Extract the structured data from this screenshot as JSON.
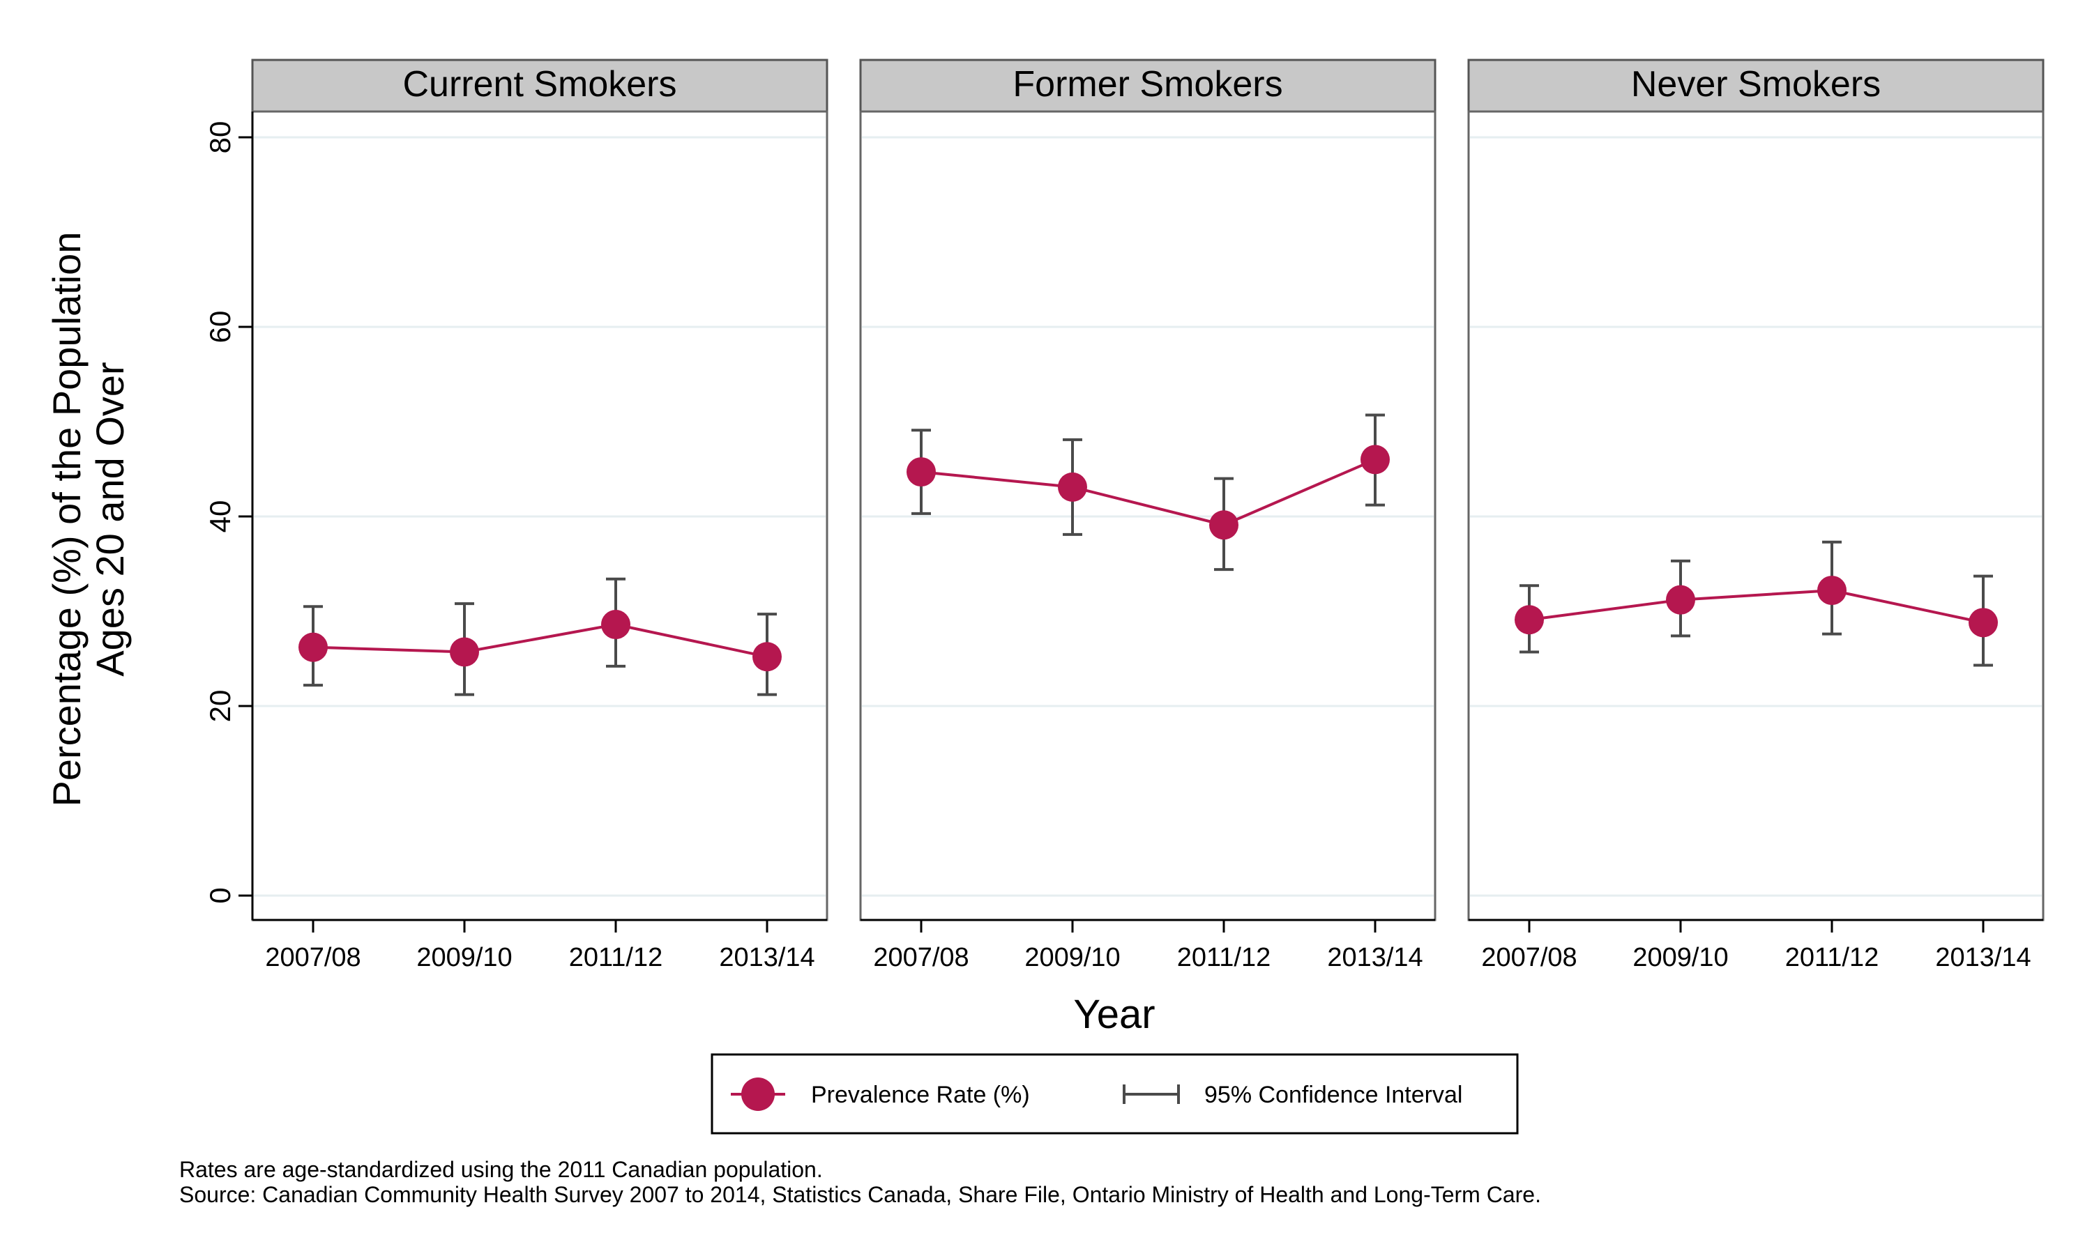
{
  "chart_data": {
    "type": "line",
    "ylabel_line1": "Percentage (%) of the Population",
    "ylabel_line2": "Ages 20 and Over",
    "xlabel": "Year",
    "ylim": [
      0,
      80
    ],
    "yticks": [
      0,
      20,
      40,
      60,
      80
    ],
    "grid": true,
    "categories": [
      "2007/08",
      "2009/10",
      "2011/12",
      "2013/14"
    ],
    "panels": [
      {
        "title": "Current Smokers",
        "values": [
          26.2,
          25.7,
          28.6,
          25.2
        ],
        "ci_low": [
          22.2,
          21.2,
          24.2,
          21.2
        ],
        "ci_high": [
          30.5,
          30.8,
          33.4,
          29.7
        ]
      },
      {
        "title": "Former Smokers",
        "values": [
          44.7,
          43.1,
          39.1,
          46.0
        ],
        "ci_low": [
          40.3,
          38.1,
          34.4,
          41.2
        ],
        "ci_high": [
          49.1,
          48.1,
          44.0,
          50.7
        ]
      },
      {
        "title": "Never Smokers",
        "values": [
          29.1,
          31.2,
          32.2,
          28.8
        ],
        "ci_low": [
          25.7,
          27.4,
          27.6,
          24.3
        ],
        "ci_high": [
          32.7,
          35.3,
          37.3,
          33.7
        ]
      }
    ],
    "legend": {
      "position": "bottom",
      "point_label": "Prevalence Rate (%)",
      "ci_label": "95% Confidence Interval"
    },
    "colors": {
      "point": "#B5174F",
      "ci": "#4A4A4A",
      "strip": "#C8C8C8",
      "grid": "#E6EEF0"
    }
  },
  "notes": {
    "line1": "Rates are age-standardized using the 2011 Canadian population.",
    "line2": "Source: Canadian Community Health Survey 2007 to 2014, Statistics Canada, Share File, Ontario Ministry of Health and Long-Term Care."
  }
}
